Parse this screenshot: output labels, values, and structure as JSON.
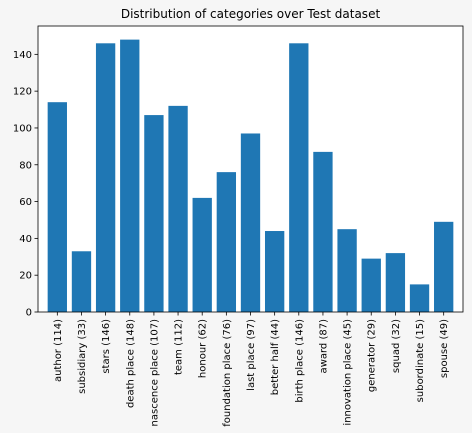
{
  "colors": {
    "background": "#f6f6f6",
    "plot_background": "#ffffff",
    "bar": "#1f77b4",
    "axis": "#000000"
  },
  "chart_data": {
    "type": "bar",
    "title": "Distribution of categories over Test dataset",
    "xlabel": "",
    "ylabel": "",
    "categories": [
      "author (114)",
      "subsidiary (33)",
      "stars (146)",
      "death place (148)",
      "nascence place (107)",
      "team (112)",
      "honour (62)",
      "foundation place (76)",
      "last place (97)",
      "better half (44)",
      "birth place (146)",
      "award (87)",
      "innovation place (45)",
      "generator (29)",
      "squad (32)",
      "subordinate (15)",
      "spouse (49)"
    ],
    "values": [
      114,
      33,
      146,
      148,
      107,
      112,
      62,
      76,
      97,
      44,
      146,
      87,
      45,
      29,
      32,
      15,
      49
    ],
    "ylim": [
      0,
      155.4
    ],
    "yticks": [
      0,
      20,
      40,
      60,
      80,
      100,
      120,
      140
    ],
    "grid": false,
    "legend": "none"
  }
}
